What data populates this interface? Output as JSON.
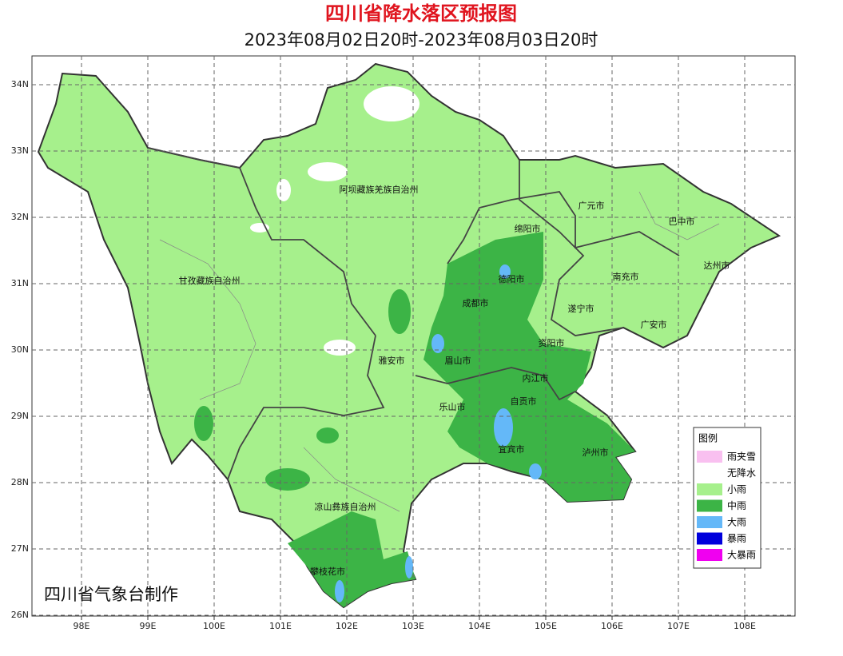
{
  "header": {
    "title": "四川省降水落区预报图",
    "subtitle": "2023年08月02日20时-2023年08月03日20时"
  },
  "map": {
    "lon_labels": [
      "98E",
      "99E",
      "100E",
      "101E",
      "102E",
      "103E",
      "104E",
      "105E",
      "106E",
      "107E",
      "108E"
    ],
    "lat_labels": [
      "34N",
      "33N",
      "32N",
      "31N",
      "30N",
      "29N",
      "28N",
      "27N",
      "26N"
    ],
    "regions": [
      "阿坝藏族羌族自治州",
      "广元市",
      "巴中市",
      "绵阳市",
      "达州市",
      "甘孜藏族自治州",
      "德阳市",
      "南充市",
      "成都市",
      "遂宁市",
      "广安市",
      "资阳市",
      "雅安市",
      "眉山市",
      "内江市",
      "乐山市",
      "自贡市",
      "宜宾市",
      "泸州市",
      "凉山彝族自治州",
      "攀枝花市"
    ]
  },
  "legend": {
    "title": "图例",
    "items": [
      {
        "label": "雨夹雪",
        "color": "#f9c0f0"
      },
      {
        "label": "无降水",
        "color": "#ffffff"
      },
      {
        "label": "小雨",
        "color": "#a6f08c"
      },
      {
        "label": "中雨",
        "color": "#3cb446"
      },
      {
        "label": "大雨",
        "color": "#64b8f8"
      },
      {
        "label": "暴雨",
        "color": "#0000dc"
      },
      {
        "label": "大暴雨",
        "color": "#f000f0"
      }
    ]
  },
  "credit": "四川省气象台制作"
}
